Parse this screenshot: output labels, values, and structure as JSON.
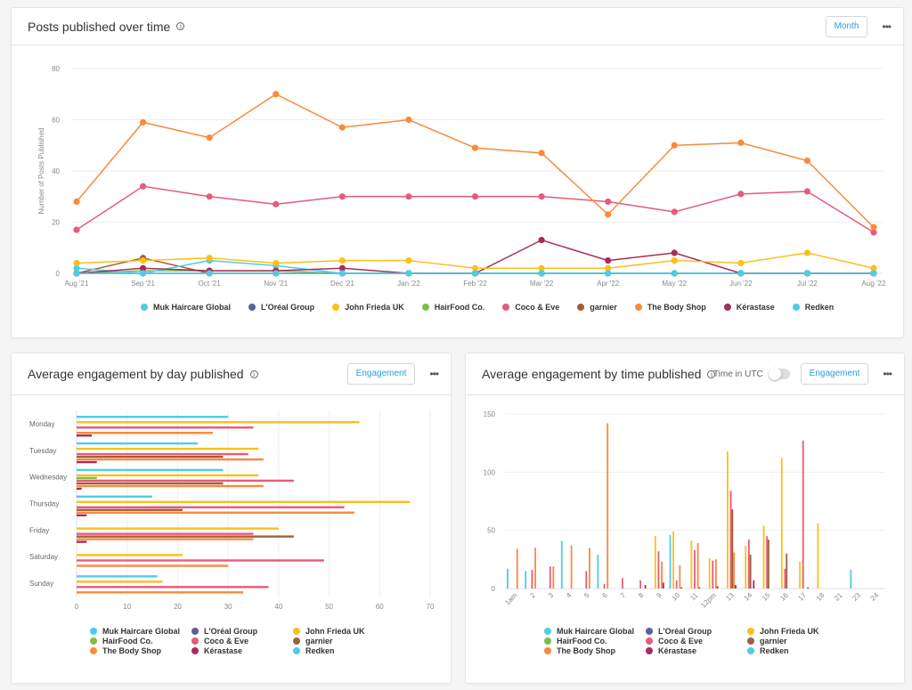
{
  "colors": {
    "Muk Haircare Global": "#4fcce6",
    "L'Oréal Group": "#5b5fa0",
    "John Frieda UK": "#fbbf1a",
    "HairFood Co.": "#7cbf45",
    "Coco & Eve": "#e85a7a",
    "garnier": "#a0603a",
    "The Body Shop": "#fa8a3a",
    "Kérastase": "#a82c5c",
    "Redken": "#4fcce6"
  },
  "legend": [
    "Muk Haircare Global",
    "L'Oréal Group",
    "John Frieda UK",
    "HairFood Co.",
    "Coco & Eve",
    "garnier",
    "The Body Shop",
    "Kérastase",
    "Redken"
  ],
  "posts_card": {
    "title": "Posts published over time",
    "button_label": "Month",
    "more_label": "•••"
  },
  "day_card": {
    "title": "Average engagement by day published",
    "button_label": "Engagement",
    "more_label": "•••"
  },
  "time_card": {
    "title": "Average engagement by time published",
    "toggle_label": "Time in UTC",
    "toggle_on": false,
    "button_label": "Engagement",
    "more_label": "•••"
  },
  "chart_data": [
    {
      "type": "line",
      "title": "Posts published over time",
      "xlabel": "",
      "ylabel": "Number of Posts Published",
      "ylim": [
        0,
        80
      ],
      "yticks": [
        0,
        20,
        40,
        60,
        80
      ],
      "grid": true,
      "legend_position": "bottom",
      "x": [
        "Aug '21",
        "Sep '21",
        "Oct '21",
        "Nov '21",
        "Dec '21",
        "Jan '22",
        "Feb '22",
        "Mar '22",
        "Apr '22",
        "May '22",
        "Jun '22",
        "Jul '22",
        "Aug '22"
      ],
      "series": [
        {
          "name": "Muk Haircare Global",
          "values": [
            2,
            0,
            5,
            3,
            0,
            0,
            0,
            0,
            0,
            0,
            0,
            0,
            0
          ]
        },
        {
          "name": "L'Oréal Group",
          "values": [
            0,
            0,
            0,
            0,
            0,
            0,
            0,
            0,
            0,
            0,
            0,
            0,
            0
          ]
        },
        {
          "name": "John Frieda UK",
          "values": [
            4,
            5,
            6,
            4,
            5,
            5,
            2,
            2,
            2,
            5,
            4,
            8,
            2
          ]
        },
        {
          "name": "HairFood Co.",
          "values": [
            0,
            1,
            1,
            1,
            0,
            0,
            0,
            0,
            0,
            0,
            0,
            0,
            0
          ]
        },
        {
          "name": "Coco & Eve",
          "values": [
            17,
            34,
            30,
            27,
            30,
            30,
            30,
            30,
            28,
            24,
            31,
            32,
            16
          ]
        },
        {
          "name": "garnier",
          "values": [
            0,
            6,
            0,
            0,
            0,
            0,
            0,
            0,
            0,
            0,
            0,
            0,
            0
          ]
        },
        {
          "name": "The Body Shop",
          "values": [
            28,
            59,
            53,
            70,
            57,
            60,
            49,
            47,
            23,
            50,
            51,
            44,
            18
          ]
        },
        {
          "name": "Kérastase",
          "values": [
            0,
            2,
            1,
            1,
            2,
            0,
            0,
            13,
            5,
            8,
            0,
            0,
            0
          ]
        },
        {
          "name": "Redken",
          "values": [
            0,
            0,
            0,
            0,
            0,
            0,
            0,
            0,
            0,
            0,
            0,
            0,
            0
          ]
        }
      ]
    },
    {
      "type": "bar",
      "orientation": "horizontal",
      "title": "Average engagement by day published",
      "xlim": [
        0,
        70
      ],
      "xticks": [
        0,
        10,
        20,
        30,
        40,
        50,
        60,
        70
      ],
      "grid": true,
      "legend_position": "bottom",
      "categories": [
        "Monday",
        "Tuesday",
        "Wednesday",
        "Thursday",
        "Friday",
        "Saturday",
        "Sunday"
      ],
      "series": [
        {
          "name": "Muk Haircare Global",
          "values": [
            30,
            24,
            29,
            15,
            0,
            0,
            16
          ]
        },
        {
          "name": "L'Oréal Group",
          "values": [
            0,
            0,
            0,
            0,
            0,
            0,
            0
          ]
        },
        {
          "name": "John Frieda UK",
          "values": [
            56,
            36,
            36,
            66,
            40,
            21,
            17
          ]
        },
        {
          "name": "HairFood Co.",
          "values": [
            0,
            0,
            4,
            0,
            0,
            0,
            0
          ]
        },
        {
          "name": "Coco & Eve",
          "values": [
            35,
            34,
            43,
            53,
            35,
            49,
            38
          ]
        },
        {
          "name": "garnier",
          "values": [
            0,
            29,
            29,
            21,
            43,
            0,
            0
          ]
        },
        {
          "name": "The Body Shop",
          "values": [
            27,
            37,
            37,
            55,
            35,
            30,
            33
          ]
        },
        {
          "name": "Kérastase",
          "values": [
            3,
            4,
            1,
            2,
            2,
            0,
            0
          ]
        },
        {
          "name": "Redken",
          "values": [
            0,
            0,
            0,
            0,
            0,
            0,
            0
          ]
        }
      ]
    },
    {
      "type": "bar",
      "orientation": "vertical",
      "title": "Average engagement by time published",
      "ylim": [
        0,
        150
      ],
      "yticks": [
        0,
        50,
        100,
        150
      ],
      "grid": true,
      "legend_position": "bottom",
      "categories": [
        "1am",
        "2",
        "3",
        "4",
        "5",
        "6",
        "7",
        "8",
        "9",
        "10",
        "11",
        "12pm",
        "13",
        "14",
        "15",
        "16",
        "17",
        "18",
        "21",
        "23",
        "24"
      ],
      "series": [
        {
          "name": "Muk Haircare Global",
          "values": [
            17,
            15,
            0,
            41,
            0,
            29,
            0,
            0,
            0,
            46,
            0,
            0,
            0,
            0,
            0,
            0,
            0,
            0,
            0,
            16,
            0
          ]
        },
        {
          "name": "L'Oréal Group",
          "values": [
            0,
            0,
            0,
            0,
            0,
            0,
            0,
            0,
            0,
            0,
            0,
            0,
            0,
            0,
            0,
            0,
            0,
            0,
            0,
            0,
            0
          ]
        },
        {
          "name": "John Frieda UK",
          "values": [
            0,
            0,
            0,
            0,
            0,
            0,
            0,
            0,
            45,
            49,
            41,
            26,
            118,
            37,
            54,
            112,
            23,
            56,
            0,
            0,
            0
          ]
        },
        {
          "name": "HairFood Co.",
          "values": [
            0,
            0,
            0,
            0,
            0,
            0,
            0,
            0,
            0,
            0,
            0,
            0,
            0,
            0,
            0,
            0,
            0,
            0,
            0,
            0,
            0
          ]
        },
        {
          "name": "Coco & Eve",
          "values": [
            0,
            16,
            19,
            0,
            15,
            4,
            9,
            7,
            32,
            7,
            33,
            24,
            84,
            42,
            45,
            17,
            127,
            0,
            0,
            0,
            0
          ]
        },
        {
          "name": "garnier",
          "values": [
            0,
            0,
            0,
            0,
            0,
            0,
            0,
            0,
            0,
            0,
            0,
            0,
            68,
            29,
            42,
            30,
            0,
            0,
            0,
            0,
            0
          ]
        },
        {
          "name": "The Body Shop",
          "values": [
            34,
            35,
            19,
            37,
            35,
            142,
            0,
            0,
            23,
            20,
            39,
            25,
            31,
            0,
            0,
            0,
            0,
            0,
            0,
            0,
            0
          ]
        },
        {
          "name": "Kérastase",
          "values": [
            0,
            0,
            0,
            0,
            0,
            0,
            0,
            3,
            5,
            1,
            1,
            2,
            3,
            7,
            0,
            0,
            1,
            0,
            0,
            0,
            0
          ]
        },
        {
          "name": "Redken",
          "values": [
            0,
            0,
            0,
            0,
            0,
            0,
            0,
            0,
            0,
            0,
            0,
            0,
            0,
            0,
            0,
            0,
            0,
            0,
            0,
            0,
            0
          ]
        }
      ]
    }
  ]
}
